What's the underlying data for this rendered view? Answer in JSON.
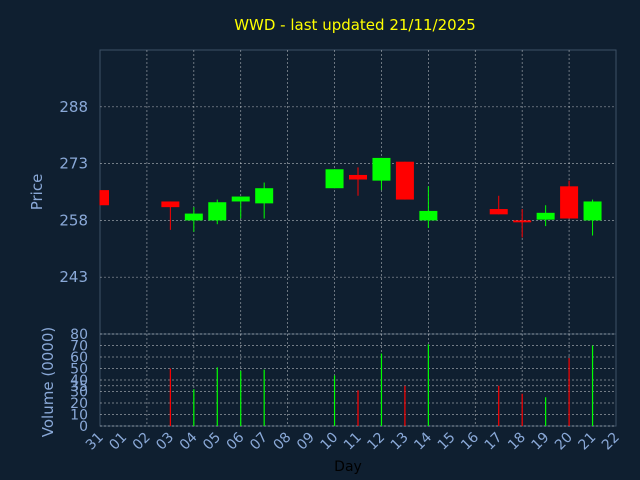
{
  "colors": {
    "background": "#0f1f30",
    "title": "#ffff00",
    "axis_text": "#8aa9d8",
    "grid": "#ffffff",
    "up": "#00ff00",
    "down": "#ff0000"
  },
  "chart_data": [
    {
      "type": "candlestick",
      "title": "WWD - last updated 21/11/2025",
      "ylabel": "Price",
      "ylim": [
        228,
        303
      ],
      "yticks": [
        243,
        258,
        273,
        288
      ],
      "grid": true,
      "categories": [
        "31",
        "01",
        "02",
        "03",
        "04",
        "05",
        "06",
        "07",
        "08",
        "09",
        "10",
        "11",
        "12",
        "13",
        "14",
        "15",
        "16",
        "17",
        "18",
        "19",
        "20",
        "21",
        "22"
      ],
      "candles": [
        {
          "day": "31",
          "open": 266,
          "close": 262,
          "high": 266,
          "low": 262
        },
        {
          "day": "03",
          "open": 263,
          "close": 261.5,
          "high": 263,
          "low": 255.5
        },
        {
          "day": "04",
          "open": 258,
          "close": 259.8,
          "high": 261.5,
          "low": 255
        },
        {
          "day": "05",
          "open": 258,
          "close": 262.8,
          "high": 263.5,
          "low": 257
        },
        {
          "day": "06",
          "open": 263,
          "close": 264.3,
          "high": 264.3,
          "low": 258.5
        },
        {
          "day": "07",
          "open": 262.5,
          "close": 266.5,
          "high": 268,
          "low": 258.5
        },
        {
          "day": "10",
          "open": 266.5,
          "close": 271.5,
          "high": 271.5,
          "low": 266.5
        },
        {
          "day": "11",
          "open": 270,
          "close": 268.8,
          "high": 272,
          "low": 264.5
        },
        {
          "day": "12",
          "open": 268.5,
          "close": 274.5,
          "high": 274.5,
          "low": 266
        },
        {
          "day": "13",
          "open": 273.5,
          "close": 263.5,
          "high": 273.5,
          "low": 263.5
        },
        {
          "day": "14",
          "open": 258,
          "close": 260.5,
          "high": 267,
          "low": 256
        },
        {
          "day": "17",
          "open": 261,
          "close": 259.6,
          "high": 264.5,
          "low": 259.6
        },
        {
          "day": "18",
          "open": 258,
          "close": 257.5,
          "high": 261,
          "low": 253.5
        },
        {
          "day": "19",
          "open": 258.2,
          "close": 260,
          "high": 262,
          "low": 256.5
        },
        {
          "day": "20",
          "open": 267,
          "close": 258.5,
          "high": 268.5,
          "low": 258.5
        },
        {
          "day": "21",
          "open": 258,
          "close": 263,
          "high": 263.5,
          "low": 254
        }
      ]
    },
    {
      "type": "bar",
      "ylabel": "Volume (0000)",
      "xlabel": "Day",
      "ylim": [
        0,
        80
      ],
      "yticks": [
        0,
        10,
        20,
        30,
        35,
        40,
        50,
        60,
        70,
        80
      ],
      "grid": true,
      "categories": [
        "31",
        "01",
        "02",
        "03",
        "04",
        "05",
        "06",
        "07",
        "08",
        "09",
        "10",
        "11",
        "12",
        "13",
        "14",
        "15",
        "16",
        "17",
        "18",
        "19",
        "20",
        "21",
        "22"
      ],
      "bars": [
        {
          "day": "03",
          "value": 50,
          "dir": "down"
        },
        {
          "day": "04",
          "value": 32,
          "dir": "up"
        },
        {
          "day": "05",
          "value": 51,
          "dir": "up"
        },
        {
          "day": "06",
          "value": 48,
          "dir": "up"
        },
        {
          "day": "07",
          "value": 49,
          "dir": "up"
        },
        {
          "day": "10",
          "value": 44,
          "dir": "up"
        },
        {
          "day": "11",
          "value": 31,
          "dir": "down"
        },
        {
          "day": "12",
          "value": 63,
          "dir": "up"
        },
        {
          "day": "13",
          "value": 35,
          "dir": "down"
        },
        {
          "day": "14",
          "value": 71,
          "dir": "up"
        },
        {
          "day": "17",
          "value": 35,
          "dir": "down"
        },
        {
          "day": "18",
          "value": 28,
          "dir": "down"
        },
        {
          "day": "19",
          "value": 25,
          "dir": "up"
        },
        {
          "day": "20",
          "value": 59,
          "dir": "down"
        },
        {
          "day": "21",
          "value": 70,
          "dir": "up"
        }
      ]
    }
  ]
}
